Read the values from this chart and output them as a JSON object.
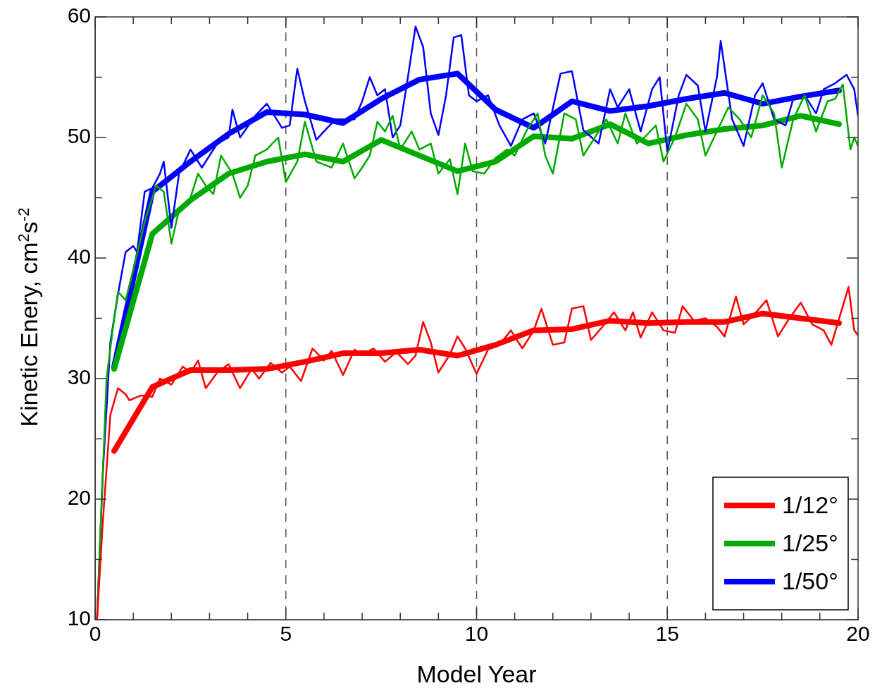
{
  "chart_data": {
    "type": "line",
    "xlabel": "Model Year",
    "ylabel": "Kinetic Enery, cm$^{2}$s$^{-2}$",
    "xlim": [
      0,
      20
    ],
    "ylim": [
      10,
      60
    ],
    "xticks": [
      0,
      {
        "value": 1,
        "label": null
      },
      {
        "value": 2,
        "label": null
      },
      {
        "value": 3,
        "label": null
      },
      {
        "value": 4,
        "label": null
      },
      5,
      {
        "value": 6,
        "label": null
      },
      {
        "value": 7,
        "label": null
      },
      {
        "value": 8,
        "label": null
      },
      {
        "value": 9,
        "label": null
      },
      10,
      {
        "value": 11,
        "label": null
      },
      {
        "value": 12,
        "label": null
      },
      {
        "value": 13,
        "label": null
      },
      {
        "value": 14,
        "label": null
      },
      15,
      {
        "value": 16,
        "label": null
      },
      {
        "value": 17,
        "label": null
      },
      {
        "value": 18,
        "label": null
      },
      {
        "value": 19,
        "label": null
      },
      20
    ],
    "yticks": [
      10,
      {
        "value": 15,
        "label": null
      },
      20,
      {
        "value": 25,
        "label": null
      },
      30,
      {
        "value": 35,
        "label": null
      },
      40,
      {
        "value": 45,
        "label": null
      },
      50,
      {
        "value": 55,
        "label": null
      },
      60
    ],
    "grid": false,
    "legend": "bottom right",
    "marker": "none",
    "line_style": "solid",
    "ref_lines": [
      {
        "axis": "x",
        "value": 5,
        "color": "#555555",
        "line_style": "dashed"
      },
      {
        "axis": "x",
        "value": 10,
        "color": "#555555",
        "line_style": "dashed"
      },
      {
        "axis": "x",
        "value": 15,
        "color": "#555555",
        "line_style": "dashed"
      }
    ],
    "series": [
      {
        "color": "#ff0000",
        "x": [
          0.05,
          0.2,
          0.4,
          0.6,
          0.8,
          0.9,
          1.2,
          1.5,
          1.7,
          2.0,
          2.3,
          2.5,
          2.7,
          2.9,
          3.2,
          3.5,
          3.8,
          4.1,
          4.3,
          4.6,
          4.9,
          5.1,
          5.4,
          5.7,
          6.0,
          6.2,
          6.5,
          6.8,
          7.0,
          7.3,
          7.6,
          7.9,
          8.2,
          8.4,
          8.6,
          8.8,
          9.0,
          9.3,
          9.5,
          9.7,
          10.0,
          10.3,
          10.6,
          10.9,
          11.2,
          11.5,
          11.7,
          12.0,
          12.3,
          12.5,
          12.8,
          13.0,
          13.3,
          13.6,
          13.9,
          14.1,
          14.3,
          14.6,
          14.9,
          15.2,
          15.4,
          15.7,
          16.0,
          16.3,
          16.5,
          16.8,
          17.0,
          17.3,
          17.6,
          17.9,
          18.2,
          18.5,
          18.8,
          19.1,
          19.3,
          19.6,
          19.75,
          19.9,
          20.0
        ],
        "values": [
          10,
          18,
          27,
          29.2,
          28.7,
          28.2,
          28.6,
          28.5,
          30,
          29.5,
          31,
          30.5,
          31.5,
          29.2,
          30.5,
          31.2,
          29.2,
          30.8,
          30,
          31.3,
          30.5,
          31,
          29.8,
          32.5,
          31.5,
          32.3,
          30.3,
          32.4,
          32,
          32.5,
          31.4,
          32.2,
          31.2,
          31.9,
          34.7,
          33,
          30.5,
          32,
          33.5,
          32.5,
          30.4,
          32.4,
          32.8,
          34,
          32.5,
          34,
          35.8,
          32.8,
          33,
          35.8,
          36,
          33.2,
          34.3,
          35.5,
          34,
          35.5,
          33.4,
          35.5,
          34,
          33.8,
          36,
          34.8,
          35,
          34.3,
          33.5,
          36.8,
          34.5,
          35.4,
          36.5,
          33.5,
          35,
          36.3,
          34.5,
          34,
          32.8,
          36,
          37.6,
          34,
          33.6
        ]
      },
      {
        "color": "#00aa00",
        "x": [
          0.05,
          0.3,
          0.5,
          0.6,
          0.8,
          1.0,
          1.3,
          1.6,
          1.8,
          2.0,
          2.2,
          2.5,
          2.7,
          2.9,
          3.1,
          3.3,
          3.6,
          3.8,
          4.0,
          4.2,
          4.5,
          4.8,
          5.0,
          5.3,
          5.5,
          5.8,
          6.2,
          6.5,
          6.8,
          7.0,
          7.2,
          7.4,
          7.6,
          7.8,
          8.0,
          8.3,
          8.5,
          8.8,
          9.0,
          9.3,
          9.5,
          9.7,
          9.9,
          10.2,
          10.5,
          10.8,
          11.0,
          11.3,
          11.6,
          11.8,
          12.0,
          12.3,
          12.6,
          12.8,
          13.1,
          13.4,
          13.7,
          13.9,
          14.2,
          14.4,
          14.7,
          14.9,
          15.2,
          15.5,
          15.8,
          16.0,
          16.3,
          16.6,
          16.9,
          17.2,
          17.5,
          17.8,
          18.0,
          18.3,
          18.6,
          18.9,
          19.2,
          19.4,
          19.6,
          19.8,
          19.9,
          20.0
        ],
        "values": [
          10,
          30,
          35,
          37.2,
          36.5,
          39,
          43,
          46,
          45.5,
          41.2,
          44,
          45,
          47,
          46,
          45.3,
          48.5,
          47,
          45,
          46,
          48.5,
          49,
          50,
          46.3,
          48,
          51.3,
          48,
          47.5,
          49.5,
          46.6,
          47.5,
          48.5,
          51.3,
          50.5,
          51.8,
          49,
          50.5,
          49,
          49.5,
          47,
          48.2,
          45.3,
          49.5,
          47.2,
          47,
          48.3,
          49,
          48.5,
          50.5,
          52,
          48.5,
          47,
          52,
          51.5,
          48.5,
          50,
          51.5,
          49.5,
          52,
          49.5,
          50,
          51,
          48,
          50,
          52.8,
          51.5,
          48.5,
          50.5,
          52.5,
          51.5,
          50,
          53.5,
          52,
          47.5,
          51.5,
          53.5,
          50.5,
          53,
          53.2,
          54.4,
          49,
          50,
          49.3
        ]
      },
      {
        "color": "#0000ff",
        "x": [
          0.05,
          0.2,
          0.4,
          0.6,
          0.8,
          1.0,
          1.1,
          1.3,
          1.5,
          1.7,
          1.8,
          2.0,
          2.2,
          2.5,
          2.8,
          3.2,
          3.5,
          3.6,
          3.8,
          4.2,
          4.5,
          4.9,
          5.1,
          5.3,
          5.5,
          5.8,
          6.0,
          6.3,
          6.5,
          6.8,
          7.0,
          7.2,
          7.4,
          7.6,
          7.8,
          8.0,
          8.2,
          8.4,
          8.6,
          8.8,
          9.0,
          9.2,
          9.4,
          9.6,
          9.8,
          10.0,
          10.3,
          10.6,
          10.9,
          11.2,
          11.5,
          11.8,
          12.2,
          12.5,
          12.8,
          13.2,
          13.5,
          13.7,
          14.0,
          14.3,
          14.6,
          14.8,
          15.0,
          15.3,
          15.5,
          15.8,
          16.0,
          16.3,
          16.4,
          16.7,
          17.0,
          17.3,
          17.5,
          17.8,
          18.1,
          18.3,
          18.6,
          18.9,
          19.1,
          19.4,
          19.7,
          19.9,
          20.0
        ],
        "values": [
          10,
          22,
          33,
          37,
          40.5,
          41,
          40.5,
          45.5,
          45.8,
          47,
          48,
          42.5,
          47,
          49,
          47.5,
          49.5,
          50,
          52.3,
          50,
          51.8,
          52.8,
          50.8,
          51,
          55.7,
          53,
          49.8,
          50.5,
          51.5,
          51.5,
          51.5,
          53,
          55,
          53.5,
          54,
          50,
          51,
          55,
          59.2,
          57.5,
          52,
          50.2,
          53.5,
          58.3,
          58.5,
          53.5,
          53,
          53.5,
          51,
          49.3,
          51.5,
          52,
          49.5,
          55.3,
          55.5,
          50.6,
          49.5,
          54,
          52.5,
          54,
          50.5,
          54,
          55,
          48.8,
          53.5,
          55.2,
          54.3,
          50.5,
          55,
          58,
          51.5,
          49.3,
          53.5,
          54.5,
          51.5,
          51,
          53.2,
          53.5,
          52,
          54,
          54.5,
          55.2,
          54,
          51.8
        ]
      },
      {
        "name": "1/12°",
        "color": "#ff0000",
        "x": [
          0.5,
          1.5,
          2.5,
          3.5,
          4.5,
          5.5,
          6.5,
          7.5,
          8.5,
          9.5,
          10.5,
          11.5,
          12.5,
          13.5,
          14.5,
          15.5,
          16.5,
          17.5,
          18.5,
          19.5
        ],
        "values": [
          24,
          29.3,
          30.7,
          30.7,
          30.8,
          31.4,
          32.1,
          32.1,
          32.4,
          31.9,
          32.8,
          34,
          34.1,
          34.8,
          34.6,
          34.7,
          34.7,
          35.4,
          35,
          34.6
        ]
      },
      {
        "name": "1/25°",
        "color": "#00aa00",
        "x": [
          0.5,
          1.5,
          2.5,
          3.5,
          4.5,
          5.5,
          6.5,
          7.5,
          8.5,
          9.5,
          10.5,
          11.5,
          12.5,
          13.5,
          14.5,
          15.5,
          16.5,
          17.5,
          18.5,
          19.5
        ],
        "values": [
          30.8,
          42,
          44.8,
          47,
          48,
          48.6,
          48,
          49.8,
          48.5,
          47.2,
          48,
          50.1,
          49.9,
          51.1,
          49.5,
          50.2,
          50.7,
          51,
          51.8,
          51.1
        ]
      },
      {
        "name": "1/50°",
        "color": "#0000ff",
        "x": [
          0.5,
          1.5,
          2.5,
          3.5,
          4.5,
          5.5,
          6.5,
          7.5,
          8.5,
          9.5,
          10.5,
          11.5,
          12.5,
          13.5,
          14.5,
          15.5,
          16.5,
          17.5,
          18.5,
          19.5
        ],
        "values": [
          31,
          45.5,
          48,
          50.3,
          52.1,
          51.9,
          51.2,
          53.2,
          54.8,
          55.3,
          52.3,
          50.8,
          53,
          52.2,
          52.6,
          53.2,
          53.7,
          52.8,
          53.4,
          53.9
        ]
      }
    ]
  }
}
